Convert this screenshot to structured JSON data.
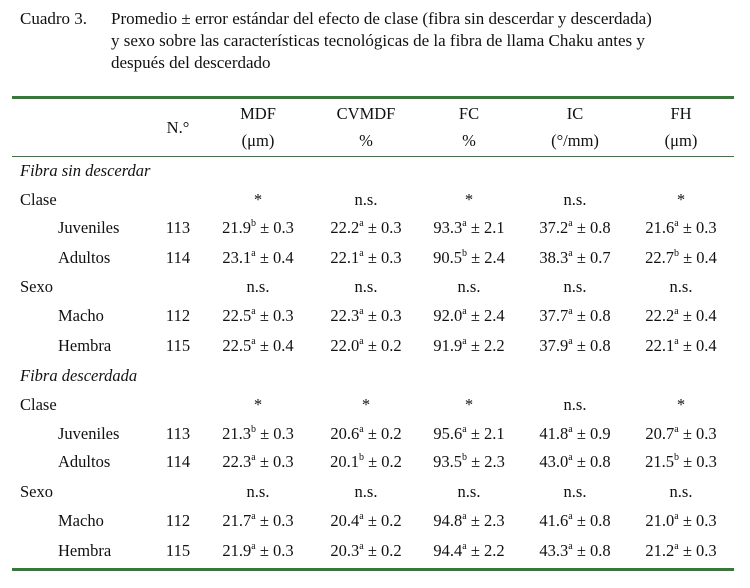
{
  "caption": {
    "label": "Cuadro 3.",
    "line1": "Promedio ± error estándar del efecto de clase (fibra sin descerdar y descerdada)",
    "line2": "y sexo sobre las características tecnológicas de la fibra de llama Chaku antes y",
    "line3": "después del descerdado"
  },
  "header": {
    "n": "N.°",
    "cols": [
      {
        "name": "MDF",
        "unit": "(μm)"
      },
      {
        "name": "CVMDF",
        "unit": "%"
      },
      {
        "name": "FC",
        "unit": "%"
      },
      {
        "name": "IC",
        "unit": "(°/mm)"
      },
      {
        "name": "FH",
        "unit": "(μm)"
      }
    ]
  },
  "rows": [
    {
      "label": "Fibra sin descerdar",
      "kind": "section"
    },
    {
      "label": "Clase",
      "kind": "group",
      "sig": [
        "*",
        "n.s.",
        "*",
        "n.s.",
        "*"
      ]
    },
    {
      "label": "Juveniles",
      "kind": "data",
      "n": "113",
      "vals": [
        [
          "21.9",
          "b",
          "± 0.3"
        ],
        [
          "22.2",
          "a",
          "± 0.3"
        ],
        [
          "93.3",
          "a",
          "± 2.1"
        ],
        [
          "37.2",
          "a",
          "± 0.8"
        ],
        [
          "21.6",
          "a",
          "± 0.3"
        ]
      ]
    },
    {
      "label": "Adultos",
      "kind": "data",
      "n": "114",
      "vals": [
        [
          "23.1",
          "a",
          "± 0.4"
        ],
        [
          "22.1",
          "a",
          "± 0.3"
        ],
        [
          "90.5",
          "b",
          "± 2.4"
        ],
        [
          "38.3",
          "a",
          "± 0.7"
        ],
        [
          "22.7",
          "b",
          "± 0.4"
        ]
      ]
    },
    {
      "label": "Sexo",
      "kind": "group",
      "sig": [
        "n.s.",
        "n.s.",
        "n.s.",
        "n.s.",
        "n.s."
      ]
    },
    {
      "label": "Macho",
      "kind": "data",
      "n": "112",
      "vals": [
        [
          "22.5",
          "a",
          "± 0.3"
        ],
        [
          "22.3",
          "a",
          "± 0.3"
        ],
        [
          "92.0",
          "a",
          "± 2.4"
        ],
        [
          "37.7",
          "a",
          "± 0.8"
        ],
        [
          "22.2",
          "a",
          "± 0.4"
        ]
      ]
    },
    {
      "label": "Hembra",
      "kind": "data",
      "n": "115",
      "vals": [
        [
          "22.5",
          "a",
          "± 0.4"
        ],
        [
          "22.0",
          "a",
          "± 0.2"
        ],
        [
          "91.9",
          "a",
          "± 2.2"
        ],
        [
          "37.9",
          "a",
          "± 0.8"
        ],
        [
          "22.1",
          "a",
          "± 0.4"
        ]
      ]
    },
    {
      "label": "Fibra descerdada",
      "kind": "section"
    },
    {
      "label": "Clase",
      "kind": "group",
      "sig": [
        "*",
        "*",
        "*",
        "n.s.",
        "*"
      ]
    },
    {
      "label": "Juveniles",
      "kind": "data",
      "n": "113",
      "vals": [
        [
          "21.3",
          "b",
          "± 0.3"
        ],
        [
          "20.6",
          "a",
          "± 0.2"
        ],
        [
          "95.6",
          "a",
          "± 2.1"
        ],
        [
          "41.8",
          "a",
          "± 0.9"
        ],
        [
          "20.7",
          "a",
          "± 0.3"
        ]
      ]
    },
    {
      "label": "Adultos",
      "kind": "data",
      "n": "114",
      "vals": [
        [
          "22.3",
          "a",
          "± 0.3"
        ],
        [
          "20.1",
          "b",
          "± 0.2"
        ],
        [
          "93.5",
          "b",
          "± 2.3"
        ],
        [
          "43.0",
          "a",
          "± 0.8"
        ],
        [
          "21.5",
          "b",
          "± 0.3"
        ]
      ]
    },
    {
      "label": "Sexo",
      "kind": "group",
      "sig": [
        "n.s.",
        "n.s.",
        "n.s.",
        "n.s.",
        "n.s."
      ]
    },
    {
      "label": "Macho",
      "kind": "data",
      "n": "112",
      "vals": [
        [
          "21.7",
          "a",
          "± 0.3"
        ],
        [
          "20.4",
          "a",
          "± 0.2"
        ],
        [
          "94.8",
          "a",
          "± 2.3"
        ],
        [
          "41.6",
          "a",
          "± 0.8"
        ],
        [
          "21.0",
          "a",
          "± 0.3"
        ]
      ]
    },
    {
      "label": "Hembra",
      "kind": "data",
      "n": "115",
      "vals": [
        [
          "21.9",
          "a",
          "± 0.3"
        ],
        [
          "20.3",
          "a",
          "± 0.2"
        ],
        [
          "94.4",
          "a",
          "± 2.2"
        ],
        [
          "43.3",
          "a",
          "± 0.8"
        ],
        [
          "21.2",
          "a",
          "± 0.3"
        ]
      ]
    }
  ],
  "colors": {
    "rule": "#2e7d32"
  }
}
